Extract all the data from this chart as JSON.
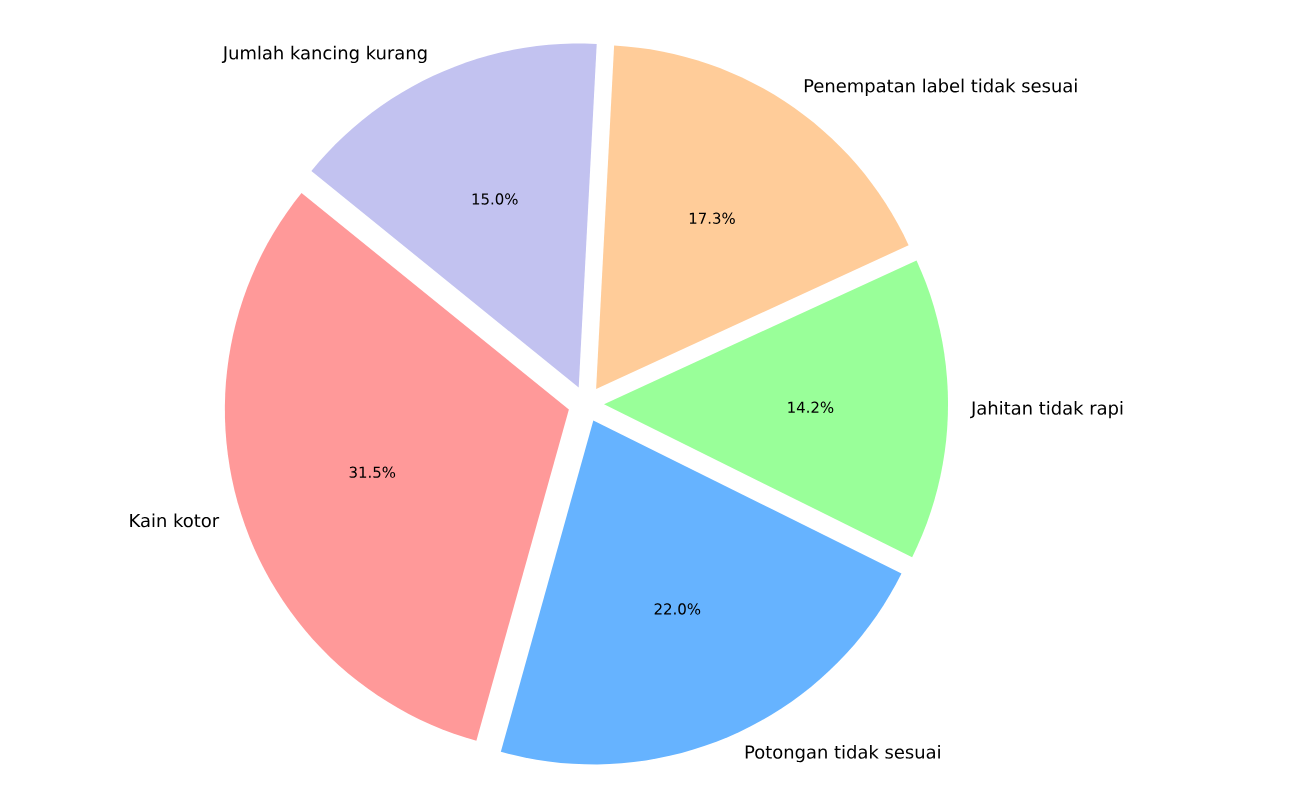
{
  "chart_data": {
    "type": "pie",
    "categories": [
      "Kain kotor",
      "Potongan tidak sesuai",
      "Jahitan tidak rapi",
      "Penempatan label tidak sesuai",
      "Jumlah kancing kurang"
    ],
    "values": [
      31.5,
      22.0,
      14.2,
      17.3,
      15.0
    ],
    "value_labels": [
      "31.5%",
      "22.0%",
      "14.2%",
      "17.3%",
      "15.0%"
    ],
    "colors": [
      "#ff9999",
      "#66b3ff",
      "#99ff99",
      "#ffcc99",
      "#c2c2f0"
    ]
  }
}
